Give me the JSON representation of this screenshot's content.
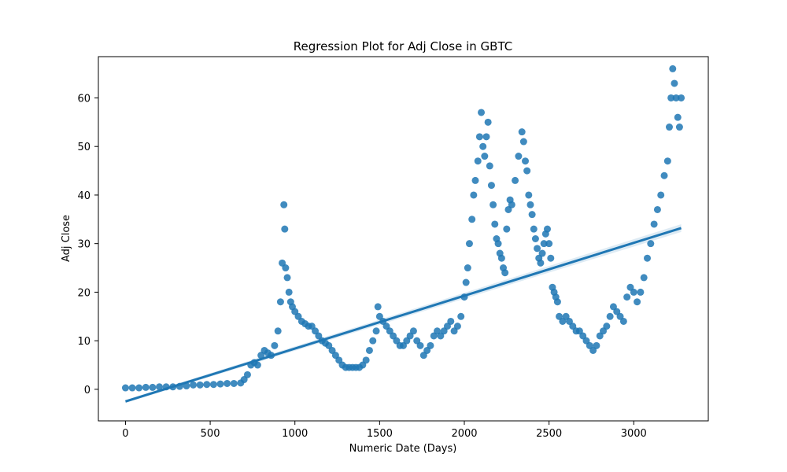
{
  "chart_data": {
    "type": "scatter",
    "title": "Regression Plot for Adj Close in GBTC",
    "xlabel": "Numeric Date (Days)",
    "ylabel": "Adj Close",
    "xlim": [
      -160,
      3440
    ],
    "ylim": [
      -6.5,
      68.5
    ],
    "xticks": [
      0,
      500,
      1000,
      1500,
      2000,
      2500,
      3000
    ],
    "yticks": [
      0,
      10,
      20,
      30,
      40,
      50,
      60
    ],
    "grid": false,
    "legend": "none",
    "colors": {
      "points": "#1f77b4",
      "line": "#1f77b4",
      "band": "#1f77b4"
    },
    "regression": {
      "x": [
        0,
        3280
      ],
      "y": [
        -2.5,
        33.2
      ],
      "ci_halfwidth_start": 0.3,
      "ci_halfwidth_end": 0.8
    },
    "points": [
      [
        0,
        0.3
      ],
      [
        40,
        0.3
      ],
      [
        80,
        0.3
      ],
      [
        120,
        0.4
      ],
      [
        160,
        0.4
      ],
      [
        200,
        0.5
      ],
      [
        240,
        0.5
      ],
      [
        280,
        0.5
      ],
      [
        320,
        0.6
      ],
      [
        360,
        0.7
      ],
      [
        400,
        0.9
      ],
      [
        440,
        0.9
      ],
      [
        480,
        1.0
      ],
      [
        520,
        1.0
      ],
      [
        560,
        1.1
      ],
      [
        600,
        1.2
      ],
      [
        640,
        1.2
      ],
      [
        680,
        1.3
      ],
      [
        700,
        2.0
      ],
      [
        720,
        3.0
      ],
      [
        740,
        5.0
      ],
      [
        760,
        5.5
      ],
      [
        780,
        5.0
      ],
      [
        800,
        7.0
      ],
      [
        820,
        8.0
      ],
      [
        840,
        7.5
      ],
      [
        860,
        7.0
      ],
      [
        880,
        9.0
      ],
      [
        900,
        12.0
      ],
      [
        915,
        18.0
      ],
      [
        925,
        26.0
      ],
      [
        935,
        38.0
      ],
      [
        940,
        33.0
      ],
      [
        945,
        25.0
      ],
      [
        955,
        23.0
      ],
      [
        965,
        20.0
      ],
      [
        975,
        18.0
      ],
      [
        985,
        17.0
      ],
      [
        1000,
        16.0
      ],
      [
        1020,
        15.0
      ],
      [
        1040,
        14.0
      ],
      [
        1060,
        13.5
      ],
      [
        1080,
        13.0
      ],
      [
        1100,
        13.0
      ],
      [
        1120,
        12.0
      ],
      [
        1140,
        11.0
      ],
      [
        1160,
        10.0
      ],
      [
        1180,
        9.5
      ],
      [
        1200,
        9.0
      ],
      [
        1220,
        8.0
      ],
      [
        1240,
        7.0
      ],
      [
        1260,
        6.0
      ],
      [
        1280,
        5.0
      ],
      [
        1300,
        4.5
      ],
      [
        1320,
        4.5
      ],
      [
        1340,
        4.5
      ],
      [
        1360,
        4.5
      ],
      [
        1380,
        4.5
      ],
      [
        1400,
        5.0
      ],
      [
        1420,
        6.0
      ],
      [
        1440,
        8.0
      ],
      [
        1460,
        10.0
      ],
      [
        1480,
        12.0
      ],
      [
        1490,
        17.0
      ],
      [
        1500,
        15.0
      ],
      [
        1520,
        14.0
      ],
      [
        1540,
        13.0
      ],
      [
        1560,
        12.0
      ],
      [
        1580,
        11.0
      ],
      [
        1600,
        10.0
      ],
      [
        1620,
        9.0
      ],
      [
        1640,
        9.0
      ],
      [
        1660,
        10.0
      ],
      [
        1680,
        11.0
      ],
      [
        1700,
        12.0
      ],
      [
        1720,
        10.0
      ],
      [
        1740,
        9.0
      ],
      [
        1760,
        7.0
      ],
      [
        1780,
        8.0
      ],
      [
        1800,
        9.0
      ],
      [
        1820,
        11.0
      ],
      [
        1840,
        12.0
      ],
      [
        1860,
        11.0
      ],
      [
        1880,
        12.0
      ],
      [
        1900,
        13.0
      ],
      [
        1920,
        14.0
      ],
      [
        1940,
        12.0
      ],
      [
        1960,
        13.0
      ],
      [
        1980,
        15.0
      ],
      [
        2000,
        19.0
      ],
      [
        2010,
        22.0
      ],
      [
        2020,
        25.0
      ],
      [
        2030,
        30.0
      ],
      [
        2045,
        35.0
      ],
      [
        2055,
        40.0
      ],
      [
        2065,
        43.0
      ],
      [
        2080,
        47.0
      ],
      [
        2090,
        52.0
      ],
      [
        2100,
        57.0
      ],
      [
        2110,
        50.0
      ],
      [
        2120,
        48.0
      ],
      [
        2130,
        52.0
      ],
      [
        2140,
        55.0
      ],
      [
        2150,
        46.0
      ],
      [
        2160,
        42.0
      ],
      [
        2170,
        38.0
      ],
      [
        2180,
        34.0
      ],
      [
        2190,
        31.0
      ],
      [
        2200,
        30.0
      ],
      [
        2210,
        28.0
      ],
      [
        2220,
        27.0
      ],
      [
        2230,
        25.0
      ],
      [
        2240,
        24.0
      ],
      [
        2250,
        33.0
      ],
      [
        2260,
        37.0
      ],
      [
        2270,
        39.0
      ],
      [
        2280,
        38.0
      ],
      [
        2300,
        43.0
      ],
      [
        2320,
        48.0
      ],
      [
        2340,
        53.0
      ],
      [
        2350,
        51.0
      ],
      [
        2360,
        47.0
      ],
      [
        2370,
        45.0
      ],
      [
        2380,
        40.0
      ],
      [
        2390,
        38.0
      ],
      [
        2400,
        36.0
      ],
      [
        2410,
        33.0
      ],
      [
        2420,
        31.0
      ],
      [
        2430,
        29.0
      ],
      [
        2440,
        27.0
      ],
      [
        2450,
        26.0
      ],
      [
        2460,
        28.0
      ],
      [
        2470,
        30.0
      ],
      [
        2480,
        32.0
      ],
      [
        2490,
        33.0
      ],
      [
        2500,
        30.0
      ],
      [
        2510,
        27.0
      ],
      [
        2520,
        21.0
      ],
      [
        2530,
        20.0
      ],
      [
        2540,
        19.0
      ],
      [
        2550,
        18.0
      ],
      [
        2560,
        15.0
      ],
      [
        2580,
        14.0
      ],
      [
        2600,
        15.0
      ],
      [
        2620,
        14.0
      ],
      [
        2640,
        13.0
      ],
      [
        2660,
        12.0
      ],
      [
        2680,
        12.0
      ],
      [
        2700,
        11.0
      ],
      [
        2720,
        10.0
      ],
      [
        2740,
        9.0
      ],
      [
        2760,
        8.0
      ],
      [
        2780,
        9.0
      ],
      [
        2800,
        11.0
      ],
      [
        2820,
        12.0
      ],
      [
        2840,
        13.0
      ],
      [
        2860,
        15.0
      ],
      [
        2880,
        17.0
      ],
      [
        2900,
        16.0
      ],
      [
        2920,
        15.0
      ],
      [
        2940,
        14.0
      ],
      [
        2960,
        19.0
      ],
      [
        2980,
        21.0
      ],
      [
        3000,
        20.0
      ],
      [
        3020,
        18.0
      ],
      [
        3040,
        20.0
      ],
      [
        3060,
        23.0
      ],
      [
        3080,
        27.0
      ],
      [
        3100,
        30.0
      ],
      [
        3120,
        34.0
      ],
      [
        3140,
        37.0
      ],
      [
        3160,
        40.0
      ],
      [
        3180,
        44.0
      ],
      [
        3200,
        47.0
      ],
      [
        3210,
        54.0
      ],
      [
        3220,
        60.0
      ],
      [
        3230,
        66.0
      ],
      [
        3240,
        63.0
      ],
      [
        3250,
        60.0
      ],
      [
        3260,
        56.0
      ],
      [
        3270,
        54.0
      ],
      [
        3280,
        60.0
      ]
    ]
  }
}
